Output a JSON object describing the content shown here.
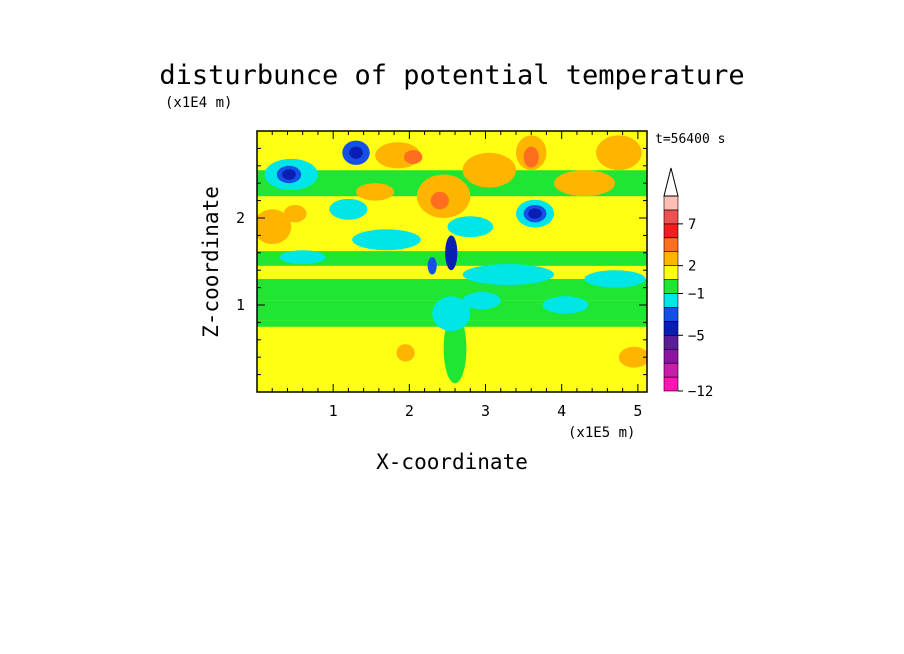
{
  "chart_data": {
    "type": "heatmap",
    "title": "disturbunce of potential temperature",
    "time_label": "t=56400 s",
    "xlabel": "X-coordinate",
    "ylabel": "Z-coordinate",
    "x_unit": "(x1E5 m)",
    "y_unit": "(x1E4 m)",
    "xlim": [
      0,
      5.12
    ],
    "ylim": [
      0,
      3.0
    ],
    "x_ticks": [
      "1",
      "2",
      "3",
      "4",
      "5"
    ],
    "y_ticks": [
      "1",
      "2"
    ],
    "colorbar": {
      "tick_labels": [
        "7",
        "2",
        "−1",
        "−5",
        "−12"
      ],
      "colors": [
        "#ff14b4",
        "#c81eaa",
        "#8c14a0",
        "#5a1e9b",
        "#0a1eb4",
        "#1450e6",
        "#00e6e6",
        "#1ee632",
        "#ffff14",
        "#ffb400",
        "#ff6e1e",
        "#f01e1e",
        "#f05050",
        "#ffbeb4"
      ],
      "extend": "max"
    },
    "field_description_note": "",
    "features": [
      {
        "x": 0.4,
        "z": 2.5,
        "value": -5
      },
      {
        "x": 1.3,
        "z": 2.75,
        "value": -5
      },
      {
        "x": 3.65,
        "z": 2.05,
        "value": -5
      },
      {
        "x": 2.55,
        "z": 1.6,
        "value": -5
      },
      {
        "x": 2.05,
        "z": 2.7,
        "value": 2
      },
      {
        "x": 3.6,
        "z": 2.7,
        "value": 2
      },
      {
        "x": 2.4,
        "z": 2.2,
        "value": 2
      },
      {
        "x": 0.3,
        "z": 1.9,
        "value": 1
      },
      {
        "x": 2.6,
        "z": 0.5,
        "value": 0
      }
    ]
  }
}
